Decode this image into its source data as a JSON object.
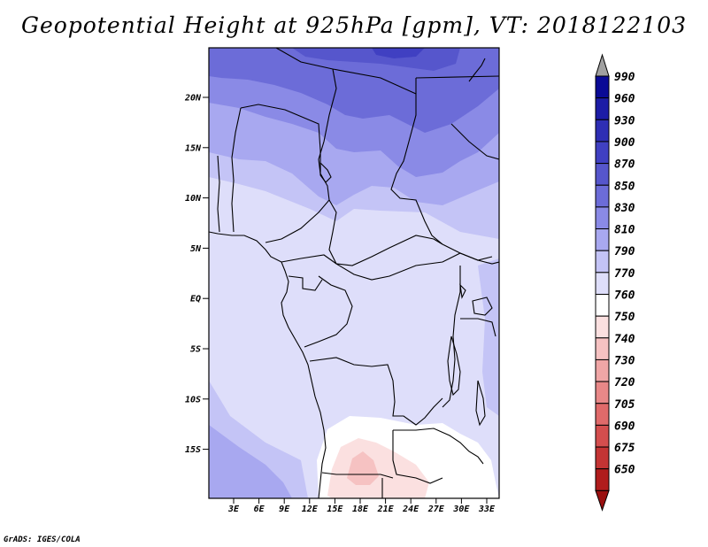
{
  "title": "Geopotential Height at 925hPa [gpm], VT: 2018122103",
  "credit": "GrADS: IGES/COLA",
  "map": {
    "variable": "Geopotential Height",
    "level": "925hPa",
    "units": "gpm",
    "valid_time": "2018122103",
    "lat_ticks": [
      "20N",
      "15N",
      "10N",
      "5N",
      "EQ",
      "5S",
      "10S",
      "15S"
    ],
    "lon_ticks": [
      "3E",
      "6E",
      "9E",
      "12E",
      "15E",
      "18E",
      "21E",
      "24E",
      "27E",
      "30E",
      "33E"
    ]
  },
  "colorbar": {
    "levels": [
      {
        "label": "990",
        "color": "#0a0a96"
      },
      {
        "label": "960",
        "color": "#1c1ca6"
      },
      {
        "label": "930",
        "color": "#2e2eb4"
      },
      {
        "label": "900",
        "color": "#4040c2"
      },
      {
        "label": "870",
        "color": "#5656cc"
      },
      {
        "label": "850",
        "color": "#6c6cd8"
      },
      {
        "label": "830",
        "color": "#8a8ae6"
      },
      {
        "label": "810",
        "color": "#a8a8f0"
      },
      {
        "label": "790",
        "color": "#c4c4f6"
      },
      {
        "label": "770",
        "color": "#dedefa"
      },
      {
        "label": "760",
        "color": "#ffffff"
      },
      {
        "label": "750",
        "color": "#fbe0e0"
      },
      {
        "label": "740",
        "color": "#f6c2c2"
      },
      {
        "label": "730",
        "color": "#f0a6a6"
      },
      {
        "label": "720",
        "color": "#e88888"
      },
      {
        "label": "705",
        "color": "#e06a6a"
      },
      {
        "label": "690",
        "color": "#d44e4e"
      },
      {
        "label": "675",
        "color": "#c43434"
      },
      {
        "label": "650",
        "color": "#b01c1c"
      }
    ],
    "top_arrow_color": "#a0a0a0",
    "bottom_arrow_color": "#9a1010"
  }
}
